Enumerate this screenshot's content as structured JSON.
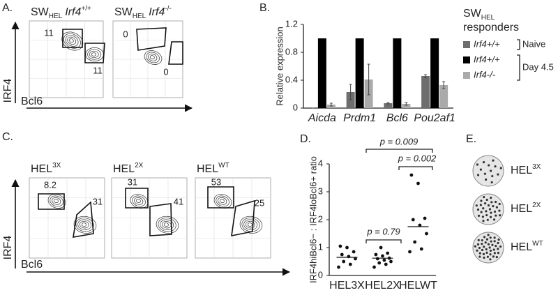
{
  "panel_labels": [
    "A.",
    "B.",
    "C.",
    "D.",
    "E."
  ],
  "panel_a": {
    "plots": [
      {
        "title": {
          "base": "SW",
          "sub": "HEL",
          "gene": "Irf4",
          "sup": "+/+"
        },
        "gates": [
          "11",
          "11"
        ]
      },
      {
        "title": {
          "base": "SW",
          "sub": "HEL",
          "gene": "Irf4",
          "sup": "-/-"
        },
        "gates": [
          "0",
          "0"
        ]
      }
    ],
    "y_axis": "IRF4",
    "x_axis": "Bcl6"
  },
  "panel_c": {
    "plots": [
      {
        "title": {
          "base": "HEL",
          "sup": "3X"
        },
        "gates": [
          "8.2",
          "31"
        ]
      },
      {
        "title": {
          "base": "HEL",
          "sup": "2X"
        },
        "gates": [
          "31",
          "41"
        ]
      },
      {
        "title": {
          "base": "HEL",
          "sup": "WT"
        },
        "gates": [
          "53",
          "25"
        ]
      }
    ],
    "y_axis": "IRF4",
    "x_axis": "Bcl6"
  },
  "panel_e": {
    "labels": [
      {
        "base": "HEL",
        "sup": "3X"
      },
      {
        "base": "HEL",
        "sup": "2X"
      },
      {
        "base": "HEL",
        "sup": "WT"
      }
    ]
  },
  "chart_data": [
    {
      "type": "bar",
      "ylabel": "Relative expression",
      "categories": [
        "Aicda",
        "Prdm1",
        "Bcl6",
        "Pou2af1"
      ],
      "series": [
        {
          "name": "Irf4+/+",
          "color": "#6e6e6e",
          "values": [
            0,
            0.23,
            0.07,
            0.46
          ],
          "errors": [
            0,
            0.11,
            0.01,
            0.02
          ]
        },
        {
          "name": "Irf4+/+",
          "color": "#000000",
          "values": [
            1,
            1,
            1,
            1
          ]
        },
        {
          "name": "Irf4-/-",
          "color": "#aaaaaa",
          "values": [
            0.05,
            0.41,
            0.06,
            0.33
          ],
          "errors": [
            0.02,
            0.22,
            0.02,
            0.05
          ]
        }
      ],
      "legend_title": {
        "base": "SW",
        "sub": "HEL",
        "rest": "responders"
      },
      "legend_groups": [
        "Naive",
        "Day 4.5"
      ],
      "ylim": [
        0,
        1.2
      ],
      "yticks": [
        0,
        0.4,
        0.8,
        1.2
      ]
    },
    {
      "type": "dot",
      "ylabel": "IRF4hiBcl6− : IRF4loBcl6+ ratio",
      "categories": [
        "HEL3X",
        "HEL2X",
        "HELWT"
      ],
      "points": [
        [
          0.3,
          0.4,
          0.5,
          0.6,
          0.68,
          0.75,
          0.85,
          1.0,
          1.05
        ],
        [
          0.3,
          0.4,
          0.45,
          0.5,
          0.55,
          0.6,
          0.62,
          0.7,
          0.75,
          0.8,
          1.0
        ],
        [
          0.85,
          0.95,
          1.2,
          1.5,
          1.8,
          2.0,
          2.05,
          3.3,
          3.6
        ]
      ],
      "means": [
        0.65,
        0.62,
        1.75
      ],
      "annotations": [
        "p = 0.009",
        "p = 0.002",
        "p = 0.79"
      ],
      "ylim": [
        0,
        4
      ],
      "yticks": [
        0,
        1,
        2,
        3,
        4
      ]
    }
  ]
}
